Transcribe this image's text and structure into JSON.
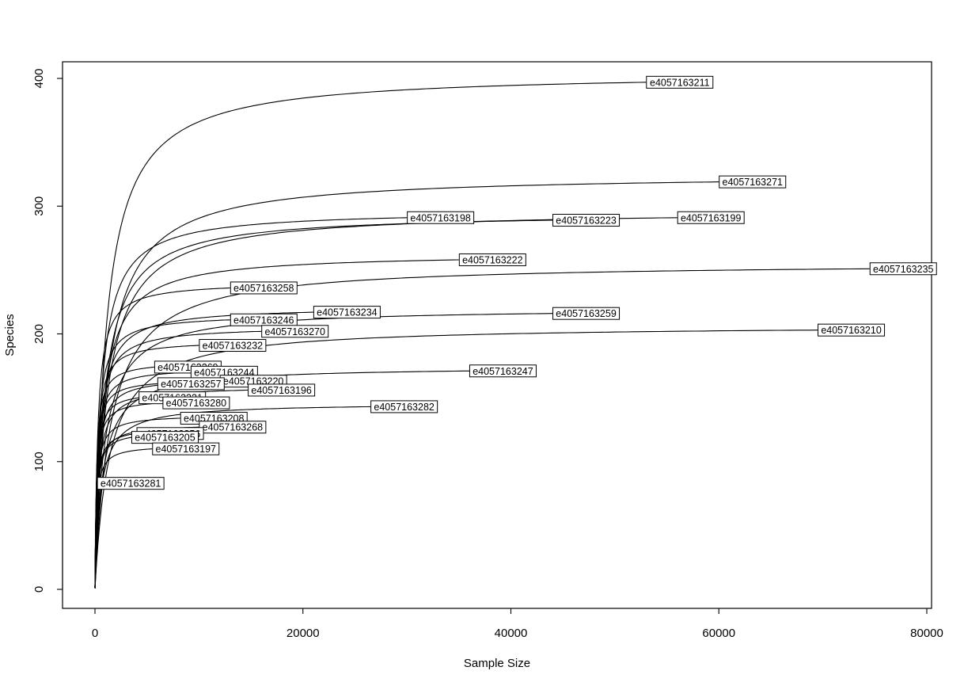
{
  "chart_data": {
    "type": "line",
    "title": "",
    "xlabel": "Sample Size",
    "ylabel": "Species",
    "xlim": [
      0,
      80000
    ],
    "ylim": [
      0,
      400
    ],
    "x_ticks": [
      0,
      20000,
      40000,
      60000,
      80000
    ],
    "y_ticks": [
      0,
      100,
      200,
      300,
      400
    ],
    "x_tick_labels": [
      "0",
      "20000",
      "40000",
      "60000",
      "80000"
    ],
    "y_tick_labels": [
      "0",
      "100",
      "200",
      "300",
      "400"
    ],
    "grid": false,
    "legend": "none",
    "series": [
      {
        "name": "e4057163211",
        "max_x": 53000,
        "max_y": 397
      },
      {
        "name": "e4057163271",
        "max_x": 60000,
        "max_y": 319
      },
      {
        "name": "e4057163198",
        "max_x": 30000,
        "max_y": 291
      },
      {
        "name": "e4057163223",
        "max_x": 44000,
        "max_y": 289
      },
      {
        "name": "e4057163199",
        "max_x": 56000,
        "max_y": 291
      },
      {
        "name": "e4057163222",
        "max_x": 35000,
        "max_y": 258
      },
      {
        "name": "e4057163235",
        "max_x": 74500,
        "max_y": 251
      },
      {
        "name": "e4057163258",
        "max_x": 13000,
        "max_y": 236
      },
      {
        "name": "e4057163234",
        "max_x": 21000,
        "max_y": 217
      },
      {
        "name": "e4057163259",
        "max_x": 44000,
        "max_y": 216
      },
      {
        "name": "e4057163246",
        "max_x": 13000,
        "max_y": 211
      },
      {
        "name": "e4057163270",
        "max_x": 16000,
        "max_y": 202
      },
      {
        "name": "e4057163210",
        "max_x": 69500,
        "max_y": 203
      },
      {
        "name": "e4057163232",
        "max_x": 10000,
        "max_y": 191
      },
      {
        "name": "e4057163269",
        "max_x": 5700,
        "max_y": 174
      },
      {
        "name": "e4057163244",
        "max_x": 9200,
        "max_y": 170
      },
      {
        "name": "e4057163247",
        "max_x": 36000,
        "max_y": 171
      },
      {
        "name": "e4057163220",
        "max_x": 12000,
        "max_y": 163
      },
      {
        "name": "e4057163257",
        "max_x": 6000,
        "max_y": 161
      },
      {
        "name": "e4057163196",
        "max_x": 14700,
        "max_y": 156
      },
      {
        "name": "e4057163221",
        "max_x": 4200,
        "max_y": 150
      },
      {
        "name": "e4057163280",
        "max_x": 6500,
        "max_y": 146
      },
      {
        "name": "e4057163282",
        "max_x": 26500,
        "max_y": 143
      },
      {
        "name": "e4057163208",
        "max_x": 8200,
        "max_y": 134
      },
      {
        "name": "e4057163268",
        "max_x": 10000,
        "max_y": 127
      },
      {
        "name": "e4057163256",
        "max_x": 4000,
        "max_y": 122
      },
      {
        "name": "e4057163205",
        "max_x": 3500,
        "max_y": 119
      },
      {
        "name": "e4057163197",
        "max_x": 5500,
        "max_y": 110
      },
      {
        "name": "e4057163281",
        "max_x": 200,
        "max_y": 83
      }
    ]
  }
}
